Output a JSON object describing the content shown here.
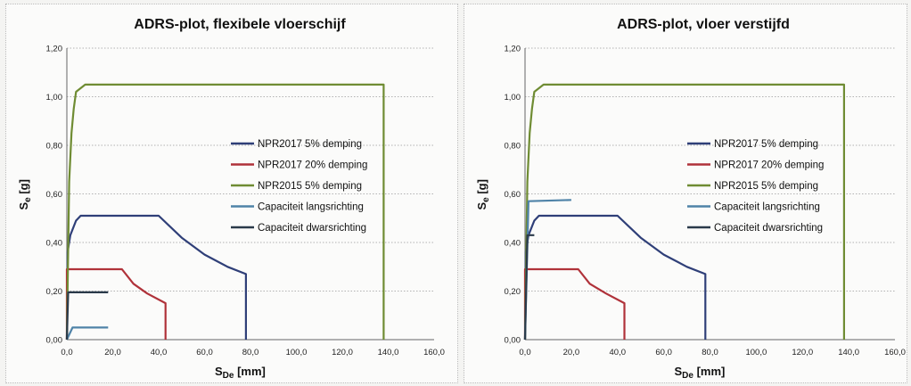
{
  "chart_data": [
    {
      "type": "line",
      "title": "ADRS-plot, flexibele vloerschijf",
      "ylabel_main": "S",
      "ylabel_sub": "e",
      "ylabel_unit": " [g]",
      "xlabel_main": "S",
      "xlabel_sub": "De",
      "xlabel_unit": " [mm]",
      "xlim": [
        0,
        160
      ],
      "ylim": [
        0,
        1.2
      ],
      "x_ticks": [
        "0,0",
        "20,0",
        "40,0",
        "60,0",
        "80,0",
        "100,0",
        "120,0",
        "140,0",
        "160,0"
      ],
      "y_ticks": [
        "0,00",
        "0,20",
        "0,40",
        "0,60",
        "0,80",
        "1,00",
        "1,20"
      ],
      "grid": "horizontal-dotted",
      "legend_position": "right-middle",
      "series": [
        {
          "name": "NPR2017 5% demping",
          "color": "#2f3f78",
          "points": [
            [
              0,
              0
            ],
            [
              0.3,
              0.36
            ],
            [
              1.5,
              0.43
            ],
            [
              4,
              0.49
            ],
            [
              6,
              0.51
            ],
            [
              40,
              0.51
            ],
            [
              50,
              0.42
            ],
            [
              60,
              0.35
            ],
            [
              70,
              0.3
            ],
            [
              78,
              0.27
            ],
            [
              78,
              0
            ]
          ]
        },
        {
          "name": "NPR2017 20% demping",
          "color": "#b0323a",
          "points": [
            [
              0,
              0
            ],
            [
              0,
              0.29
            ],
            [
              24,
              0.29
            ],
            [
              29,
              0.23
            ],
            [
              35,
              0.19
            ],
            [
              43,
              0.15
            ],
            [
              43,
              0
            ]
          ]
        },
        {
          "name": "NPR2015 5% demping",
          "color": "#6f8c33",
          "points": [
            [
              0,
              0
            ],
            [
              1,
              0.65
            ],
            [
              2,
              0.85
            ],
            [
              3,
              0.95
            ],
            [
              4,
              1.02
            ],
            [
              8,
              1.05
            ],
            [
              138,
              1.05
            ],
            [
              138,
              0
            ]
          ]
        },
        {
          "name": "Capaciteit langsrichting",
          "color": "#4f83a8",
          "points": [
            [
              0,
              0
            ],
            [
              2.5,
              0.05
            ],
            [
              18,
              0.05
            ]
          ]
        },
        {
          "name": "Capaciteit dwarsrichting",
          "color": "#2a3a4a",
          "points": [
            [
              0,
              0
            ],
            [
              0.6,
              0.195
            ],
            [
              18,
              0.195
            ]
          ]
        }
      ]
    },
    {
      "type": "line",
      "title": "ADRS-plot, vloer verstijfd",
      "ylabel_main": "S",
      "ylabel_sub": "e",
      "ylabel_unit": " [g]",
      "xlabel_main": "S",
      "xlabel_sub": "De",
      "xlabel_unit": " [mm]",
      "xlim": [
        0,
        160
      ],
      "ylim": [
        0,
        1.2
      ],
      "x_ticks": [
        "0,0",
        "20,0",
        "40,0",
        "60,0",
        "80,0",
        "100,0",
        "120,0",
        "140,0",
        "160,0"
      ],
      "y_ticks": [
        "0,00",
        "0,20",
        "0,40",
        "0,60",
        "0,80",
        "1,00",
        "1,20"
      ],
      "grid": "horizontal-dotted",
      "legend_position": "right-middle",
      "series": [
        {
          "name": "NPR2017 5% demping",
          "color": "#2f3f78",
          "points": [
            [
              0,
              0
            ],
            [
              0.3,
              0.36
            ],
            [
              1.5,
              0.43
            ],
            [
              4,
              0.49
            ],
            [
              6,
              0.51
            ],
            [
              40,
              0.51
            ],
            [
              50,
              0.42
            ],
            [
              60,
              0.35
            ],
            [
              70,
              0.3
            ],
            [
              78,
              0.27
            ],
            [
              78,
              0
            ]
          ]
        },
        {
          "name": "NPR2017 20% demping",
          "color": "#b0323a",
          "points": [
            [
              0,
              0
            ],
            [
              0,
              0.29
            ],
            [
              23,
              0.29
            ],
            [
              28,
              0.23
            ],
            [
              35,
              0.19
            ],
            [
              43,
              0.15
            ],
            [
              43,
              0
            ]
          ]
        },
        {
          "name": "NPR2015 5% demping",
          "color": "#6f8c33",
          "points": [
            [
              0,
              0
            ],
            [
              1,
              0.65
            ],
            [
              2,
              0.85
            ],
            [
              3,
              0.95
            ],
            [
              4,
              1.02
            ],
            [
              8,
              1.05
            ],
            [
              138,
              1.05
            ],
            [
              138,
              0
            ]
          ]
        },
        {
          "name": "Capaciteit langsrichting",
          "color": "#4f83a8",
          "points": [
            [
              0,
              0
            ],
            [
              1.5,
              0.57
            ],
            [
              20,
              0.575
            ]
          ]
        },
        {
          "name": "Capaciteit dwarsrichting",
          "color": "#2a3a4a",
          "points": [
            [
              0,
              0
            ],
            [
              1,
              0.43
            ],
            [
              4,
              0.43
            ]
          ]
        }
      ]
    }
  ]
}
